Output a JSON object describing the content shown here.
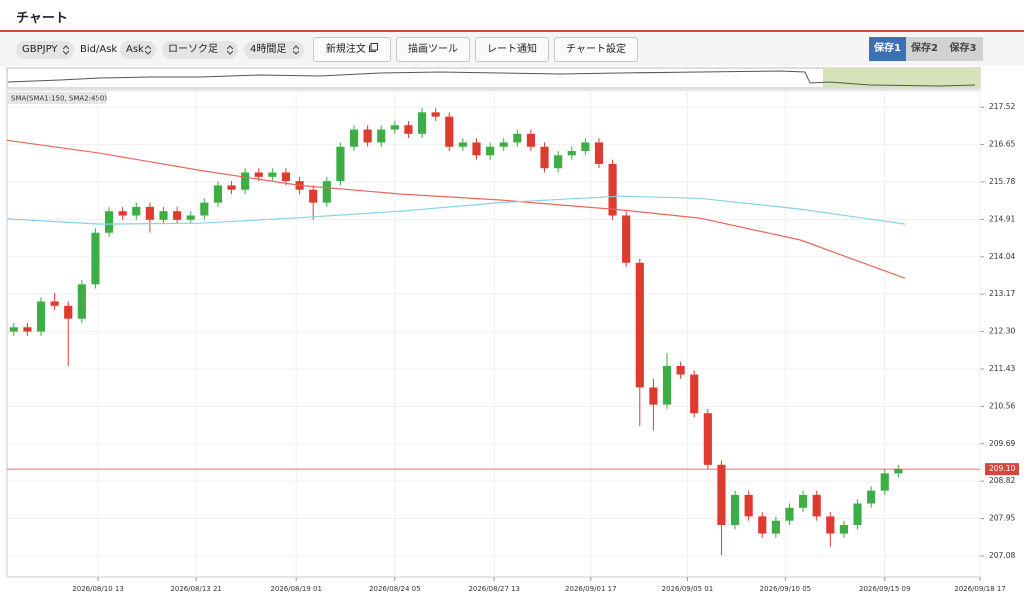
{
  "header": {
    "title": "チャート"
  },
  "toolbar": {
    "symbol": "GBPJPY",
    "price_side_label": "Bid/Ask",
    "price_side": "Ask",
    "chart_style": "ローソク足",
    "timeframe": "4時間足",
    "buttons": [
      "新規注文",
      "描画ツール",
      "レート通知",
      "チャート設定"
    ],
    "save_tabs": [
      "保存1",
      "保存2",
      "保存3"
    ]
  },
  "chart_data": {
    "type": "candlestick",
    "indicator_label": "SMA(SMA1:150, SMA2:450)",
    "up_color": "#3cae45",
    "down_color": "#dd3b30",
    "grid": true,
    "ylim": [
      206.59,
      217.92
    ],
    "xlim": [
      -0.5,
      71
    ],
    "yticks": [
      217.52,
      216.65,
      215.78,
      214.91,
      214.04,
      213.17,
      {
        "value": 212.3,
        "label": "212.30"
      },
      211.43,
      210.56,
      209.69,
      208.82,
      207.95,
      207.08
    ],
    "xticks": [
      {
        "value": 6.19,
        "label": "2026/08/10 13"
      },
      {
        "value": 13.4,
        "label": "2026/08/13 21"
      },
      {
        "value": 20.75,
        "label": "2026/08/19 01"
      },
      {
        "value": 28.0,
        "label": "2026/08/24 05"
      },
      {
        "value": 35.3,
        "label": "2026/08/27 13"
      },
      {
        "value": 42.4,
        "label": "2026/09/01 17"
      },
      {
        "value": 49.5,
        "label": "2026/09/05 01"
      },
      {
        "value": 56.7,
        "label": "2026/09/10 05"
      },
      {
        "value": 64.0,
        "label": "2026/09/15 09"
      },
      {
        "value": 71.0,
        "label": "2026/09/18 17"
      }
    ],
    "last_price": {
      "value": 209.1,
      "label": "209.10",
      "color": "#d9463a"
    },
    "ohlc": [
      [
        212.3,
        212.5,
        212.2,
        212.4
      ],
      [
        212.4,
        212.5,
        212.2,
        212.3
      ],
      [
        212.3,
        213.1,
        212.2,
        213.0
      ],
      [
        213.0,
        213.2,
        212.8,
        212.9
      ],
      [
        212.9,
        213.0,
        211.5,
        212.6
      ],
      [
        212.6,
        213.5,
        212.5,
        213.4
      ],
      [
        213.4,
        214.7,
        213.3,
        214.6
      ],
      [
        214.6,
        215.2,
        214.5,
        215.1
      ],
      [
        215.1,
        215.2,
        214.9,
        215.0
      ],
      [
        215.0,
        215.3,
        214.9,
        215.2
      ],
      [
        215.2,
        215.3,
        214.6,
        214.9
      ],
      [
        214.9,
        215.2,
        214.8,
        215.1
      ],
      [
        215.1,
        215.2,
        214.8,
        214.9
      ],
      [
        214.9,
        215.1,
        214.8,
        215.0
      ],
      [
        215.0,
        215.4,
        214.9,
        215.3
      ],
      [
        215.3,
        215.8,
        215.2,
        215.7
      ],
      [
        215.7,
        215.8,
        215.5,
        215.6
      ],
      [
        215.6,
        216.1,
        215.5,
        216.0
      ],
      [
        216.0,
        216.1,
        215.8,
        215.9
      ],
      [
        215.9,
        216.1,
        215.8,
        216.0
      ],
      [
        216.0,
        216.1,
        215.7,
        215.8
      ],
      [
        215.8,
        215.9,
        215.5,
        215.6
      ],
      [
        215.6,
        215.7,
        214.9,
        215.3
      ],
      [
        215.3,
        215.9,
        215.2,
        215.8
      ],
      [
        215.8,
        216.7,
        215.7,
        216.6
      ],
      [
        216.6,
        217.1,
        216.5,
        217.0
      ],
      [
        217.0,
        217.1,
        216.6,
        216.7
      ],
      [
        216.7,
        217.1,
        216.6,
        217.0
      ],
      [
        217.0,
        217.2,
        216.9,
        217.1
      ],
      [
        217.1,
        217.2,
        216.8,
        216.9
      ],
      [
        216.9,
        217.5,
        216.8,
        217.4
      ],
      [
        217.4,
        217.5,
        217.2,
        217.3
      ],
      [
        217.3,
        217.4,
        216.5,
        216.6
      ],
      [
        216.6,
        216.8,
        216.5,
        216.7
      ],
      [
        216.7,
        216.8,
        216.3,
        216.4
      ],
      [
        216.4,
        216.7,
        216.3,
        216.6
      ],
      [
        216.6,
        216.8,
        216.5,
        216.7
      ],
      [
        216.7,
        217.0,
        216.6,
        216.9
      ],
      [
        216.9,
        217.0,
        216.5,
        216.6
      ],
      [
        216.6,
        216.7,
        216.0,
        216.1
      ],
      [
        216.1,
        216.5,
        216.0,
        216.4
      ],
      [
        216.4,
        216.6,
        216.3,
        216.5
      ],
      [
        216.5,
        216.8,
        216.4,
        216.7
      ],
      [
        216.7,
        216.8,
        216.1,
        216.2
      ],
      [
        216.2,
        216.3,
        214.9,
        215.0
      ],
      [
        215.0,
        215.1,
        213.8,
        213.9
      ],
      [
        213.9,
        214.0,
        210.1,
        211.0
      ],
      [
        211.0,
        211.2,
        210.0,
        210.6
      ],
      [
        210.6,
        211.8,
        210.5,
        211.5
      ],
      [
        211.5,
        211.6,
        211.2,
        211.3
      ],
      [
        211.3,
        211.4,
        210.3,
        210.4
      ],
      [
        210.4,
        210.5,
        209.1,
        209.2
      ],
      [
        209.2,
        209.3,
        207.1,
        207.8
      ],
      [
        207.8,
        208.6,
        207.7,
        208.5
      ],
      [
        208.5,
        208.6,
        207.9,
        208.0
      ],
      [
        208.0,
        208.1,
        207.5,
        207.6
      ],
      [
        207.6,
        208.0,
        207.5,
        207.9
      ],
      [
        207.9,
        208.3,
        207.8,
        208.2
      ],
      [
        208.2,
        208.6,
        208.1,
        208.5
      ],
      [
        208.5,
        208.6,
        207.9,
        208.0
      ],
      [
        208.0,
        208.1,
        207.3,
        207.6
      ],
      [
        207.6,
        207.9,
        207.5,
        207.8
      ],
      [
        207.8,
        208.4,
        207.7,
        208.3
      ],
      [
        208.3,
        208.7,
        208.2,
        208.6
      ],
      [
        208.6,
        209.1,
        208.5,
        209.0
      ],
      [
        209.0,
        209.2,
        208.9,
        209.1
      ]
    ],
    "series": [
      {
        "color": "#e8675a",
        "x": [
          -0.5,
          6.34,
          13.7,
          21.0,
          28.4,
          35.75,
          44.6,
          50.4,
          57.8,
          65.5
        ],
        "values": [
          216.75,
          216.45,
          216.05,
          215.7,
          215.5,
          215.36,
          215.13,
          214.94,
          214.43,
          213.54
        ]
      },
      {
        "color": "#86d3e6",
        "x": [
          -0.5,
          6.34,
          13.7,
          21.0,
          28.4,
          35.75,
          44.6,
          50.4,
          57.8,
          65.5
        ],
        "values": [
          214.92,
          214.8,
          214.82,
          214.95,
          215.1,
          215.3,
          215.45,
          215.4,
          215.15,
          214.8
        ]
      }
    ]
  }
}
